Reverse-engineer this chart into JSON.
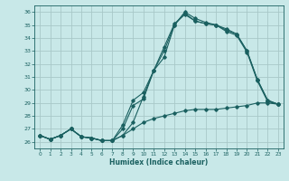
{
  "title": "",
  "xlabel": "Humidex (Indice chaleur)",
  "ylabel": "",
  "bg_color": "#c8e8e8",
  "grid_color": "#a8c8c8",
  "line_color": "#1a6060",
  "xlim": [
    -0.5,
    23.5
  ],
  "ylim": [
    25.5,
    36.5
  ],
  "xticks": [
    0,
    1,
    2,
    3,
    4,
    5,
    6,
    7,
    8,
    9,
    10,
    11,
    12,
    13,
    14,
    15,
    16,
    17,
    18,
    19,
    20,
    21,
    22,
    23
  ],
  "yticks": [
    26,
    27,
    28,
    29,
    30,
    31,
    32,
    33,
    34,
    35,
    36
  ],
  "series": [
    {
      "x": [
        0,
        1,
        2,
        3,
        4,
        5,
        6,
        7,
        8,
        9,
        10,
        11,
        12,
        13,
        14,
        15,
        16,
        17,
        18,
        19,
        20,
        21,
        22,
        23
      ],
      "y": [
        26.5,
        26.2,
        26.5,
        27.0,
        26.4,
        26.3,
        26.1,
        26.1,
        27.3,
        29.2,
        29.8,
        31.5,
        33.3,
        35.1,
        35.8,
        35.3,
        35.1,
        35.0,
        34.7,
        34.3,
        33.0,
        30.8,
        29.2,
        28.9
      ]
    },
    {
      "x": [
        0,
        1,
        2,
        3,
        4,
        5,
        6,
        7,
        8,
        9,
        10,
        11,
        12,
        13,
        14,
        15,
        16,
        17,
        18,
        19,
        20,
        21,
        22,
        23
      ],
      "y": [
        26.5,
        26.2,
        26.5,
        27.0,
        26.4,
        26.3,
        26.1,
        26.1,
        27.0,
        28.8,
        29.3,
        31.5,
        32.5,
        35.0,
        36.0,
        35.5,
        35.2,
        35.0,
        34.6,
        34.3,
        33.0,
        30.8,
        29.2,
        28.9
      ]
    },
    {
      "x": [
        0,
        1,
        2,
        3,
        4,
        5,
        6,
        7,
        8,
        9,
        10,
        11,
        12,
        13,
        14,
        15,
        16,
        17,
        18,
        19,
        20,
        21,
        22,
        23
      ],
      "y": [
        26.5,
        26.2,
        26.5,
        27.0,
        26.4,
        26.3,
        26.1,
        26.1,
        26.5,
        27.5,
        29.5,
        31.5,
        33.0,
        35.0,
        35.9,
        35.3,
        35.1,
        35.0,
        34.5,
        34.2,
        32.9,
        30.7,
        29.1,
        28.9
      ]
    },
    {
      "x": [
        0,
        1,
        2,
        3,
        4,
        5,
        6,
        7,
        8,
        9,
        10,
        11,
        12,
        13,
        14,
        15,
        16,
        17,
        18,
        19,
        20,
        21,
        22,
        23
      ],
      "y": [
        26.5,
        26.2,
        26.5,
        27.0,
        26.4,
        26.3,
        26.1,
        26.1,
        26.5,
        27.0,
        27.5,
        27.8,
        28.0,
        28.2,
        28.4,
        28.5,
        28.5,
        28.5,
        28.6,
        28.7,
        28.8,
        29.0,
        29.0,
        28.9
      ]
    }
  ]
}
